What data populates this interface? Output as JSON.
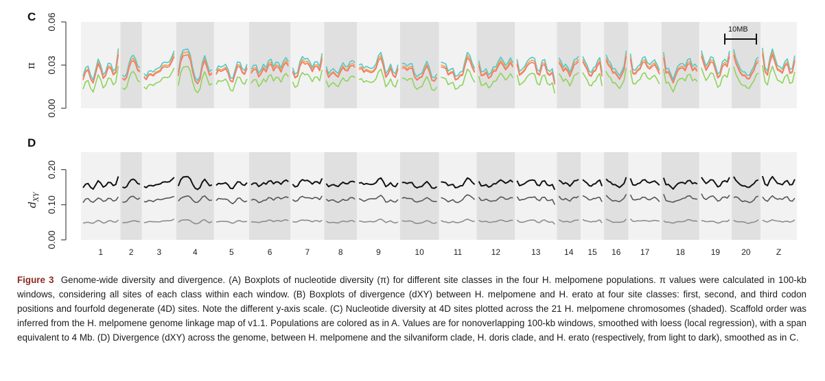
{
  "panels": {
    "c_letter": "C",
    "d_letter": "D",
    "c_ylabel": "π",
    "d_ylabel_main": "d",
    "d_ylabel_sub": "XY",
    "scale_bar_label": "10MB"
  },
  "caption": {
    "title": "Figure 3",
    "text": "Genome-wide diversity and divergence. (A) Boxplots of nucleotide diversity (π) for different site classes in the four H. melpomene populations. π values were calculated in 100-kb windows, considering all sites of each class within each window. (B) Boxplots of divergence (dXY) between H. melpomene and H. erato at four site classes: first, second, and third codon positions and fourfold degenerate (4D) sites. Note the different y-axis scale. (C) Nucleotide diversity at 4D sites plotted across the 21 H. melpomene chromosomes (shaded). Scaffold order was inferred from the H. melpomene genome linkage map of v1.1. Populations are colored as in A. Values are for nonoverlapping 100-kb windows, smoothed with loess (local regression), with a span equivalent to 4 Mb. (D) Divergence (dXY) across the genome, between H. melpomene and the silvaniform clade, H. doris clade, and H. erato (respectively, from light to dark), smoothed as in C."
  },
  "colors": {
    "band_light": "#f2f2f2",
    "band_dark": "#e0e0e0",
    "pi_cyan": "#4ec9cc",
    "pi_orange": "#f5a04a",
    "pi_salmon": "#f07a6a",
    "pi_green": "#8dd35a",
    "dxy_dark": "#111111",
    "dxy_mid": "#555555",
    "dxy_light": "#8c8c8c",
    "title_red": "#8b2a1e"
  },
  "chart_data": [
    {
      "type": "line",
      "panel": "C",
      "ylabel": "π",
      "ylim": [
        0,
        0.06
      ],
      "yticks": [
        "0.00",
        "0.03",
        "0.06"
      ],
      "ytick_values": [
        0,
        0.03,
        0.06
      ],
      "chromosomes": [
        "1",
        "2",
        "3",
        "4",
        "5",
        "6",
        "7",
        "8",
        "9",
        "10",
        "11",
        "12",
        "13",
        "14",
        "15",
        "16",
        "17",
        "18",
        "19",
        "20",
        "Z"
      ],
      "chromosome_lengths": [
        17.2,
        9.4,
        15.0,
        16.5,
        15.3,
        18.1,
        14.7,
        14.3,
        18.8,
        17.0,
        16.5,
        16.7,
        18.3,
        10.4,
        10.2,
        10.6,
        14.5,
        16.5,
        14.1,
        12.6,
        15.9
      ],
      "series": [
        {
          "color_key": "pi_cyan",
          "base": 0.029,
          "amp": 0.012
        },
        {
          "color_key": "pi_orange",
          "base": 0.027,
          "amp": 0.012
        },
        {
          "color_key": "pi_salmon",
          "base": 0.026,
          "amp": 0.011
        },
        {
          "color_key": "pi_green",
          "base": 0.019,
          "amp": 0.01
        }
      ]
    },
    {
      "type": "line",
      "panel": "D",
      "ylabel": "dXY",
      "ylim": [
        0,
        0.25
      ],
      "yticks": [
        "0.00",
        "0.10",
        "0.20"
      ],
      "ytick_values": [
        0,
        0.1,
        0.2
      ],
      "chromosomes": [
        "1",
        "2",
        "3",
        "4",
        "5",
        "6",
        "7",
        "8",
        "9",
        "10",
        "11",
        "12",
        "13",
        "14",
        "15",
        "16",
        "17",
        "18",
        "19",
        "20",
        "Z"
      ],
      "series": [
        {
          "color_key": "dxy_dark",
          "base": 0.16,
          "amp": 0.02
        },
        {
          "color_key": "dxy_mid",
          "base": 0.115,
          "amp": 0.017
        },
        {
          "color_key": "dxy_light",
          "base": 0.052,
          "amp": 0.009
        }
      ]
    }
  ]
}
